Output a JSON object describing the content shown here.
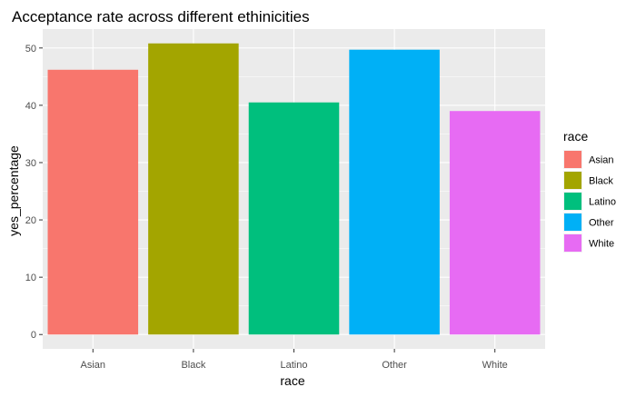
{
  "chart_data": {
    "type": "bar",
    "title": "Acceptance rate across different ethinicities",
    "xlabel": "race",
    "ylabel": "yes_percentage",
    "categories": [
      "Asian",
      "Black",
      "Latino",
      "Other",
      "White"
    ],
    "values": [
      46.2,
      50.8,
      40.5,
      49.7,
      39.0
    ],
    "colors": [
      "#F8766D",
      "#A3A500",
      "#00BF7D",
      "#00B0F6",
      "#E76BF3"
    ],
    "ylim": [
      -2.5,
      53.3
    ],
    "yticks": [
      0,
      10,
      20,
      30,
      40,
      50
    ],
    "grid": true,
    "panel_background": "#EBEBEB",
    "legend": {
      "title": "race",
      "placement": "right",
      "entries": [
        "Asian",
        "Black",
        "Latino",
        "Other",
        "White"
      ]
    }
  }
}
